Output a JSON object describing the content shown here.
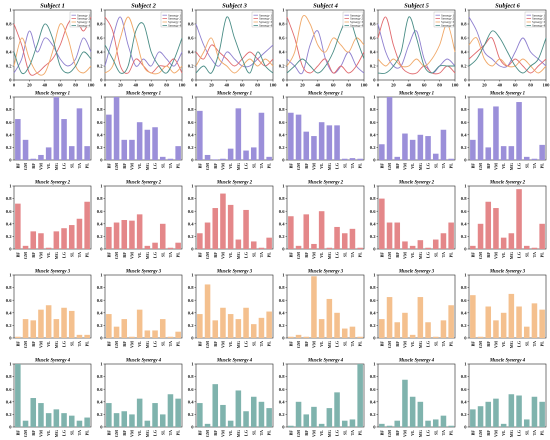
{
  "figure": {
    "subjects": [
      "Subject 1",
      "Subject 2",
      "Subject 3",
      "Subject 4",
      "Subject 5",
      "Subject 6"
    ],
    "synergy_titles": [
      "Muscle Synergy 1",
      "Muscle Synergy 2",
      "Muscle Synergy 3",
      "Muscle Synergy 4"
    ],
    "legend_entries": [
      "Synergy 1",
      "Synergy 2",
      "Synergy 3",
      "Synergy 4"
    ]
  },
  "chart_data": [
    {
      "type": "line",
      "panel_row": "activation",
      "x_ticks": [
        0,
        20,
        40,
        60,
        80,
        100
      ],
      "y_ticks": [
        0,
        0.2,
        0.4,
        0.6,
        0.8,
        1.0
      ],
      "xlim": [
        0,
        100
      ],
      "ylim": [
        0,
        1.0
      ],
      "legend_position": "top-right",
      "colors": {
        "Synergy 1": "#8f80cf",
        "Synergy 2": "#e06a6e",
        "Synergy 3": "#f0a868",
        "Synergy 4": "#4a8d86"
      },
      "x": [
        0,
        10,
        20,
        30,
        40,
        50,
        60,
        70,
        80,
        90,
        100
      ],
      "subjects": [
        {
          "series": [
            {
              "name": "Synergy 1",
              "values": [
                0.1,
                0.3,
                0.7,
                0.4,
                0.6,
                0.5,
                0.3,
                0.2,
                0.3,
                0.6,
                0.4
              ]
            },
            {
              "name": "Synergy 2",
              "values": [
                0.8,
                0.5,
                0.1,
                0.1,
                0.2,
                0.3,
                0.5,
                0.8,
                0.9,
                0.7,
                0.9
              ]
            },
            {
              "name": "Synergy 3",
              "values": [
                0.2,
                0.6,
                0.3,
                0.1,
                0.1,
                0.4,
                0.8,
                0.6,
                0.2,
                0.1,
                0.2
              ]
            },
            {
              "name": "Synergy 4",
              "values": [
                0.4,
                0.1,
                0.2,
                0.5,
                0.8,
                0.6,
                0.2,
                0.1,
                0.2,
                0.4,
                0.3
              ]
            }
          ]
        },
        {
          "series": [
            {
              "name": "Synergy 1",
              "values": [
                0.2,
                0.6,
                0.9,
                0.5,
                0.2,
                0.3,
                0.2,
                0.4,
                0.3,
                0.2,
                0.4
              ]
            },
            {
              "name": "Synergy 2",
              "values": [
                0.9,
                0.7,
                0.2,
                0.1,
                0.3,
                0.2,
                0.1,
                0.2,
                0.2,
                0.3,
                0.1
              ]
            },
            {
              "name": "Synergy 3",
              "values": [
                0.1,
                0.2,
                0.6,
                0.9,
                0.6,
                0.2,
                0.1,
                0.1,
                0.2,
                0.1,
                0.2
              ]
            },
            {
              "name": "Synergy 4",
              "values": [
                0.5,
                0.3,
                0.1,
                0.2,
                0.7,
                0.8,
                0.4,
                0.2,
                0.1,
                0.3,
                0.6
              ]
            }
          ]
        },
        {
          "series": [
            {
              "name": "Synergy 1",
              "values": [
                0.8,
                0.5,
                0.3,
                0.2,
                0.4,
                0.3,
                0.2,
                0.2,
                0.3,
                0.4,
                0.5
              ]
            },
            {
              "name": "Synergy 2",
              "values": [
                0.4,
                0.3,
                0.5,
                0.4,
                0.3,
                0.2,
                0.3,
                0.4,
                0.3,
                0.2,
                0.3
              ]
            },
            {
              "name": "Synergy 3",
              "values": [
                0.2,
                0.4,
                0.6,
                0.3,
                0.2,
                0.1,
                0.2,
                0.3,
                0.2,
                0.3,
                0.2
              ]
            },
            {
              "name": "Synergy 4",
              "values": [
                0.1,
                0.2,
                0.1,
                0.4,
                0.9,
                0.6,
                0.3,
                0.1,
                0.4,
                0.2,
                0.1
              ]
            }
          ]
        },
        {
          "series": [
            {
              "name": "Synergy 1",
              "values": [
                0.3,
                0.2,
                0.1,
                0.5,
                0.7,
                0.3,
                0.1,
                0.2,
                0.4,
                0.2,
                0.1
              ]
            },
            {
              "name": "Synergy 2",
              "values": [
                0.9,
                0.6,
                0.2,
                0.1,
                0.2,
                0.3,
                0.1,
                0.2,
                0.1,
                0.2,
                0.4
              ]
            },
            {
              "name": "Synergy 3",
              "values": [
                0.2,
                0.4,
                0.9,
                0.8,
                0.5,
                0.4,
                0.6,
                0.5,
                0.4,
                0.6,
                0.5
              ]
            },
            {
              "name": "Synergy 4",
              "values": [
                0.1,
                0.2,
                0.3,
                0.2,
                0.1,
                0.2,
                0.4,
                0.7,
                0.9,
                0.6,
                0.3
              ]
            }
          ]
        },
        {
          "series": [
            {
              "name": "Synergy 1",
              "values": [
                0.8,
                0.4,
                0.2,
                0.2,
                0.5,
                0.7,
                0.3,
                0.1,
                0.2,
                0.3,
                0.2
              ]
            },
            {
              "name": "Synergy 2",
              "values": [
                0.6,
                0.9,
                0.5,
                0.2,
                0.1,
                0.1,
                0.2,
                0.1,
                0.1,
                0.2,
                0.1
              ]
            },
            {
              "name": "Synergy 3",
              "values": [
                0.3,
                0.2,
                0.3,
                0.2,
                0.2,
                0.3,
                0.2,
                0.3,
                0.5,
                0.8,
                0.4
              ]
            },
            {
              "name": "Synergy 4",
              "values": [
                0.1,
                0.1,
                0.2,
                0.4,
                0.9,
                0.6,
                0.2,
                0.1,
                0.2,
                0.2,
                0.2
              ]
            }
          ]
        },
        {
          "series": [
            {
              "name": "Synergy 1",
              "values": [
                0.9,
                0.7,
                0.4,
                0.3,
                0.2,
                0.2,
                0.4,
                0.6,
                0.4,
                0.3,
                0.2
              ]
            },
            {
              "name": "Synergy 2",
              "values": [
                0.3,
                0.4,
                0.5,
                0.6,
                0.3,
                0.2,
                0.3,
                0.2,
                0.1,
                0.2,
                0.3
              ]
            },
            {
              "name": "Synergy 3",
              "values": [
                0.5,
                0.6,
                0.3,
                0.2,
                0.3,
                0.2,
                0.2,
                0.3,
                0.2,
                0.1,
                0.2
              ]
            },
            {
              "name": "Synergy 4",
              "values": [
                0.2,
                0.3,
                0.5,
                0.7,
                0.6,
                0.4,
                0.2,
                0.1,
                0.2,
                0.3,
                0.6
              ]
            }
          ]
        }
      ]
    },
    {
      "type": "bar",
      "categories": [
        "BF",
        "GM",
        "RF",
        "VM",
        "VL",
        "MG",
        "LG",
        "SL",
        "TA",
        "PL"
      ],
      "y_ticks": [
        0,
        0.2,
        0.4,
        0.6,
        0.8,
        1.0
      ],
      "ylim": [
        0,
        1.0
      ],
      "colors": {
        "Muscle Synergy 1": "#9b8fd9",
        "Muscle Synergy 2": "#e48789",
        "Muscle Synergy 3": "#f4c08e",
        "Muscle Synergy 4": "#7fb3ad"
      },
      "grid": [
        [
          {
            "values": [
              0.65,
              0.32,
              0.02,
              0.08,
              0.2,
              1.0,
              0.65,
              0.22,
              0.82,
              0.22
            ]
          },
          {
            "values": [
              0.72,
              1.0,
              0.32,
              0.32,
              0.6,
              0.48,
              0.52,
              0.05,
              0.02,
              0.22
            ]
          },
          {
            "values": [
              0.78,
              0.08,
              0.01,
              0.02,
              0.18,
              0.82,
              0.15,
              0.2,
              0.75,
              0.05
            ]
          },
          {
            "values": [
              0.75,
              0.72,
              0.45,
              0.38,
              0.6,
              0.55,
              0.55,
              0.02,
              0.03,
              0.02
            ]
          },
          {
            "values": [
              0.25,
              1.0,
              0.05,
              0.42,
              0.32,
              0.4,
              0.38,
              0.1,
              0.48,
              0.02
            ]
          },
          {
            "values": [
              0.32,
              0.82,
              0.2,
              0.85,
              0.22,
              0.22,
              0.92,
              0.05,
              0.02,
              0.24
            ]
          }
        ],
        [
          {
            "values": [
              0.72,
              0.05,
              0.28,
              0.25,
              0.02,
              0.28,
              0.33,
              0.38,
              0.48,
              0.75
            ]
          },
          {
            "values": [
              0.35,
              0.42,
              0.46,
              0.45,
              0.55,
              0.05,
              0.1,
              0.4,
              0.02,
              0.1
            ]
          },
          {
            "values": [
              0.25,
              0.42,
              0.65,
              0.88,
              0.7,
              0.15,
              0.62,
              0.12,
              0.02,
              0.18
            ]
          },
          {
            "values": [
              0.52,
              0.05,
              0.55,
              0.08,
              0.6,
              0.02,
              0.35,
              0.25,
              0.32,
              0.02
            ]
          },
          {
            "values": [
              0.8,
              0.42,
              0.42,
              0.12,
              0.05,
              0.14,
              0.02,
              0.15,
              0.25,
              0.42
            ]
          },
          {
            "values": [
              0.05,
              0.4,
              0.75,
              0.65,
              0.18,
              0.25,
              0.95,
              0.05,
              0.02,
              0.4
            ]
          }
        ],
        [
          {
            "values": [
              0.02,
              0.3,
              0.28,
              0.45,
              0.52,
              0.3,
              0.48,
              0.43,
              0.05,
              0.05
            ]
          },
          {
            "values": [
              0.38,
              0.18,
              0.3,
              0.02,
              0.45,
              0.12,
              0.12,
              0.3,
              0.02,
              0.1
            ]
          },
          {
            "values": [
              0.38,
              0.85,
              0.28,
              0.48,
              0.38,
              0.3,
              0.48,
              0.22,
              0.32,
              0.42
            ]
          },
          {
            "values": [
              0.02,
              0.05,
              0.02,
              0.98,
              0.3,
              0.62,
              0.4,
              0.15,
              0.18,
              0.02
            ]
          },
          {
            "values": [
              0.3,
              0.65,
              0.25,
              0.4,
              0.05,
              0.65,
              0.25,
              0.02,
              0.28,
              0.52
            ]
          },
          {
            "values": [
              0.68,
              0.02,
              0.5,
              0.28,
              0.4,
              0.7,
              0.5,
              0.18,
              0.55,
              0.45
            ]
          }
        ],
        [
          {
            "values": [
              1.0,
              0.1,
              0.46,
              0.38,
              0.22,
              0.28,
              0.22,
              0.18,
              0.1,
              0.15
            ]
          },
          {
            "values": [
              0.38,
              0.22,
              0.25,
              0.2,
              0.45,
              0.1,
              0.38,
              0.2,
              0.52,
              0.45
            ]
          },
          {
            "values": [
              0.38,
              0.05,
              0.68,
              0.35,
              0.1,
              0.58,
              0.25,
              0.48,
              0.4,
              0.3
            ]
          },
          {
            "values": [
              0.02,
              0.4,
              0.2,
              0.32,
              0.05,
              0.3,
              0.55,
              0.1,
              0.12,
              1.0
            ]
          },
          {
            "values": [
              0.05,
              0.02,
              0.1,
              0.75,
              0.48,
              0.4,
              0.1,
              0.12,
              0.18,
              0.02
            ]
          },
          {
            "values": [
              0.28,
              0.33,
              0.4,
              0.45,
              0.05,
              0.52,
              0.5,
              0.12,
              0.48,
              0.4
            ]
          }
        ]
      ]
    }
  ]
}
